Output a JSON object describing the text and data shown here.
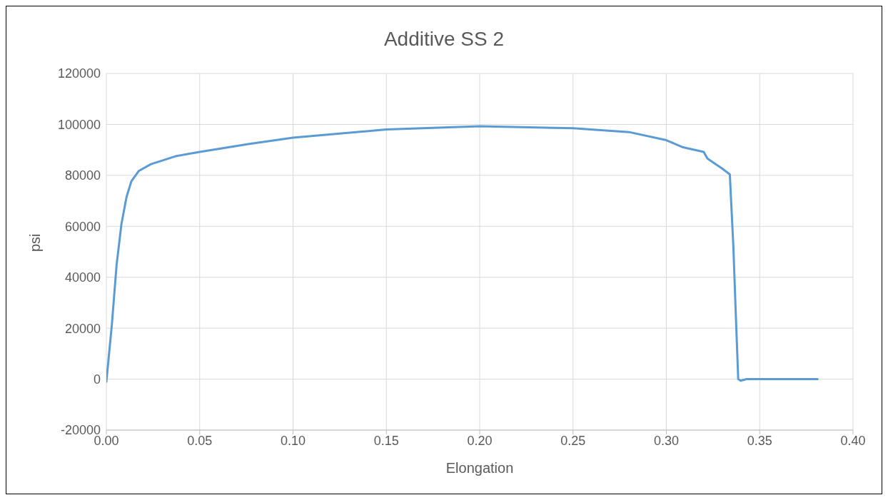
{
  "chart_data": {
    "type": "line",
    "title": "Additive SS 2",
    "xlabel": "Elongation",
    "ylabel": "psi",
    "series": [
      {
        "color": "#5b9bd5",
        "x": [
          0,
          0.0029,
          0.0055,
          0.0081,
          0.0108,
          0.0134,
          0.0173,
          0.0239,
          0.037,
          0.05,
          0.076,
          0.1,
          0.15,
          0.2,
          0.25,
          0.28,
          0.3,
          0.309,
          0.32,
          0.322,
          0.33,
          0.334,
          0.3359,
          0.3372,
          0.3385,
          0.3398,
          0.343,
          0.381
        ],
        "values": [
          -1000,
          21000,
          45000,
          61000,
          71500,
          77700,
          81700,
          84400,
          87500,
          89200,
          92300,
          94800,
          98000,
          99300,
          98500,
          97000,
          93800,
          91000,
          89200,
          86600,
          82600,
          80400,
          52000,
          25500,
          0,
          -600,
          0,
          0
        ]
      }
    ],
    "xlim": [
      0,
      0.4
    ],
    "xticks": [
      {
        "value": 0,
        "label": "0.00"
      },
      {
        "value": 0.05,
        "label": "0.05"
      },
      {
        "value": 0.1,
        "label": "0.10"
      },
      {
        "value": 0.15,
        "label": "0.15"
      },
      {
        "value": 0.2,
        "label": "0.20"
      },
      {
        "value": 0.25,
        "label": "0.25"
      },
      {
        "value": 0.3,
        "label": "0.30"
      },
      {
        "value": 0.35,
        "label": "0.35"
      },
      {
        "value": 0.4,
        "label": "0.40"
      }
    ],
    "ylim": [
      -20000,
      120000
    ],
    "yticks": [
      -20000,
      0,
      20000,
      40000,
      60000,
      80000,
      100000,
      120000
    ],
    "grid": true,
    "marker": "none",
    "line_style": "solid",
    "legend": false
  }
}
